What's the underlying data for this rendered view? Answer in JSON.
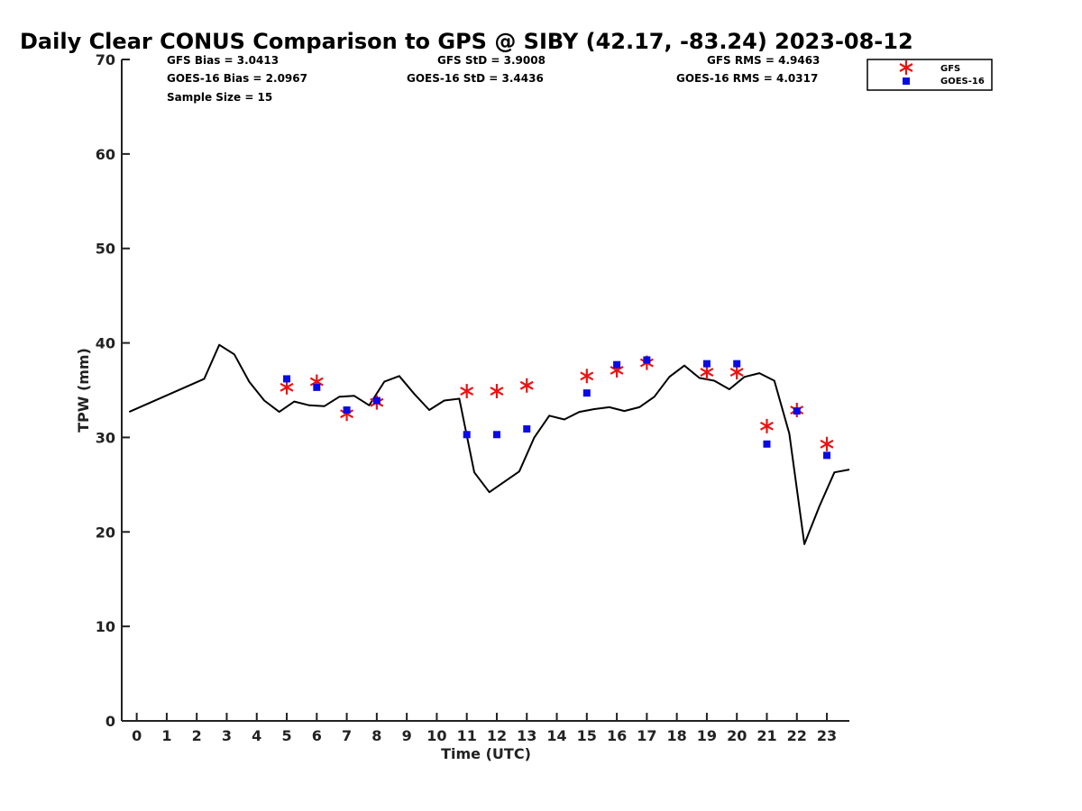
{
  "chart_data": {
    "type": "line",
    "title": "Daily Clear CONUS Comparison to GPS @ SIBY (42.17, -83.24) 2023-08-12",
    "xlabel": "Time (UTC)",
    "ylabel": "TPW (mm)",
    "xlim": [
      -0.5,
      23.75
    ],
    "ylim": [
      0,
      70
    ],
    "xticks": [
      0,
      1,
      2,
      3,
      4,
      5,
      6,
      7,
      8,
      9,
      10,
      11,
      12,
      13,
      14,
      15,
      16,
      17,
      18,
      19,
      20,
      21,
      22,
      23
    ],
    "yticks": [
      0,
      10,
      20,
      30,
      40,
      50,
      60,
      70
    ],
    "grid": false,
    "legend_position": "top-right",
    "stats": [
      {
        "id": "gfs_bias",
        "text": "GFS Bias = 3.0413"
      },
      {
        "id": "gfs_std",
        "text": "GFS StD = 3.9008"
      },
      {
        "id": "gfs_rms",
        "text": "GFS RMS = 4.9463"
      },
      {
        "id": "goes_bias",
        "text": "GOES-16 Bias = 2.0967"
      },
      {
        "id": "goes_std",
        "text": "GOES-16 StD = 3.4436"
      },
      {
        "id": "goes_rms",
        "text": "GOES-16 RMS = 4.0317"
      },
      {
        "id": "sample",
        "text": "Sample Size = 15"
      }
    ],
    "series": [
      {
        "id": "gps",
        "kind": "line",
        "color": "#000000",
        "points": [
          [
            -0.25,
            32.7
          ],
          [
            2.25,
            36.2
          ],
          [
            2.75,
            39.8
          ],
          [
            3.25,
            38.8
          ],
          [
            3.75,
            35.9
          ],
          [
            4.25,
            33.9
          ],
          [
            4.75,
            32.7
          ],
          [
            5.25,
            33.8
          ],
          [
            5.75,
            33.4
          ],
          [
            6.25,
            33.3
          ],
          [
            6.75,
            34.3
          ],
          [
            7.25,
            34.4
          ],
          [
            7.75,
            33.4
          ],
          [
            8.25,
            35.9
          ],
          [
            8.75,
            36.5
          ],
          [
            9.25,
            34.6
          ],
          [
            9.75,
            32.9
          ],
          [
            10.25,
            33.9
          ],
          [
            10.75,
            34.1
          ],
          [
            11.25,
            26.3
          ],
          [
            11.75,
            24.2
          ],
          [
            12.25,
            25.3
          ],
          [
            12.75,
            26.4
          ],
          [
            13.25,
            30.0
          ],
          [
            13.75,
            32.3
          ],
          [
            14.25,
            31.9
          ],
          [
            14.75,
            32.7
          ],
          [
            15.25,
            33.0
          ],
          [
            15.75,
            33.2
          ],
          [
            16.25,
            32.8
          ],
          [
            16.75,
            33.2
          ],
          [
            17.25,
            34.3
          ],
          [
            17.75,
            36.4
          ],
          [
            18.25,
            37.6
          ],
          [
            18.75,
            36.3
          ],
          [
            19.25,
            36.0
          ],
          [
            19.75,
            35.1
          ],
          [
            20.25,
            36.4
          ],
          [
            20.75,
            36.8
          ],
          [
            21.25,
            36.0
          ],
          [
            21.75,
            30.4
          ],
          [
            22.25,
            18.7
          ],
          [
            22.75,
            22.7
          ],
          [
            23.25,
            26.3
          ],
          [
            23.75,
            26.6
          ]
        ]
      },
      {
        "id": "gfs",
        "name": "GFS",
        "kind": "marker-asterisk",
        "color": "#ee1111",
        "points": [
          [
            5,
            35.3
          ],
          [
            6,
            35.9
          ],
          [
            7,
            32.5
          ],
          [
            8,
            33.7
          ],
          [
            11,
            34.9
          ],
          [
            12,
            34.9
          ],
          [
            13,
            35.5
          ],
          [
            15,
            36.5
          ],
          [
            16,
            37.1
          ],
          [
            17,
            37.9
          ],
          [
            19,
            36.9
          ],
          [
            20,
            36.9
          ],
          [
            21,
            31.2
          ],
          [
            22,
            32.9
          ],
          [
            23,
            29.3
          ]
        ]
      },
      {
        "id": "goes",
        "name": "GOES-16",
        "kind": "marker-square",
        "color": "#0a0ae6",
        "points": [
          [
            5,
            36.2
          ],
          [
            6,
            35.3
          ],
          [
            7,
            32.9
          ],
          [
            8,
            33.9
          ],
          [
            11,
            30.3
          ],
          [
            12,
            30.3
          ],
          [
            13,
            30.9
          ],
          [
            15,
            34.7
          ],
          [
            16,
            37.7
          ],
          [
            17,
            38.2
          ],
          [
            19,
            37.8
          ],
          [
            20,
            37.8
          ],
          [
            21,
            29.3
          ],
          [
            22,
            32.8
          ],
          [
            23,
            28.1
          ]
        ]
      }
    ]
  }
}
